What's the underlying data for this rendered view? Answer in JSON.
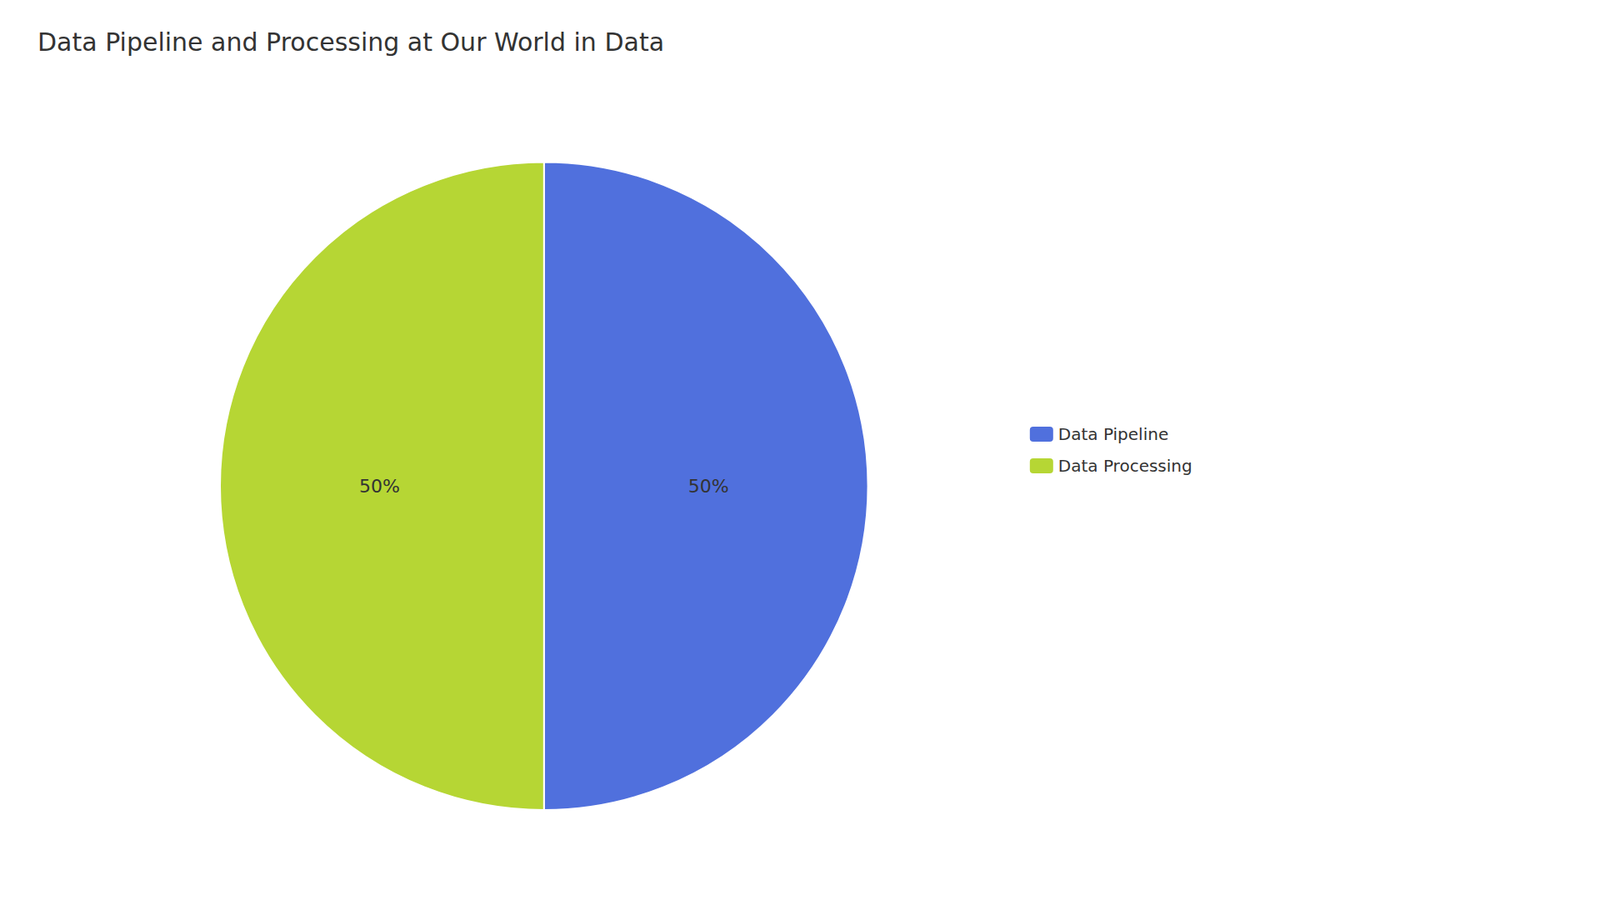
{
  "chart_data": {
    "type": "pie",
    "title": "Data Pipeline and Processing at Our World in Data",
    "categories": [
      "Data Pipeline",
      "Data Processing"
    ],
    "values": [
      50,
      50
    ],
    "value_labels": [
      "50%",
      "50%"
    ],
    "data_labels": true,
    "legend": "right"
  }
}
